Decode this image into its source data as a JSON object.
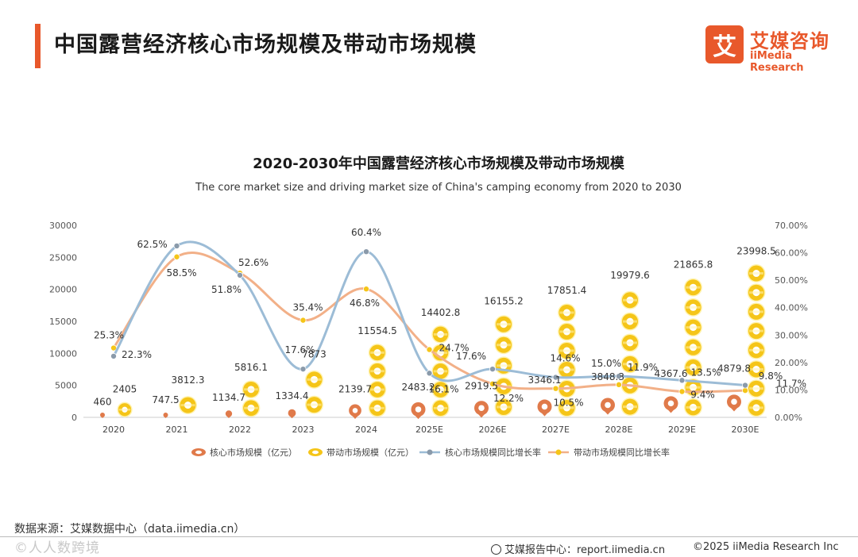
{
  "header": {
    "title": "中国露营经济核心市场规模及带动市场规模"
  },
  "brand": {
    "mark": "艾",
    "name_cn": "艾媒咨询",
    "name_en": "iiMedia Research",
    "color": "#e8582b"
  },
  "chart_data": {
    "type": "bar",
    "title": "2020-2030年中国露营经济核心市场规模及带动市场规模",
    "subtitle": "The core market size and driving market size of China's camping economy from 2020 to 2030",
    "categories": [
      "2020",
      "2021",
      "2022",
      "2023",
      "2024",
      "2025E",
      "2026E",
      "2027E",
      "2028E",
      "2029E",
      "2030E"
    ],
    "y_left": {
      "range": [
        0,
        30000
      ],
      "ticks": [
        "0",
        "5000",
        "10000",
        "15000",
        "20000",
        "25000",
        "30000"
      ]
    },
    "y_right": {
      "range": [
        0,
        70
      ],
      "ticks": [
        "0.00%",
        "10.00%",
        "20.00%",
        "30.00%",
        "40.00%",
        "50.00%",
        "60.00%",
        "70.00%"
      ]
    },
    "series": [
      {
        "name": "核心市场规模（亿元）",
        "kind": "bar",
        "color": "#e07a4a",
        "values": [
          460,
          747.5,
          1134.7,
          1334.4,
          2139.7,
          2483.2,
          2919.5,
          3346.1,
          3848.3,
          4367.6,
          4879.8
        ],
        "labels": [
          "460",
          "747.5",
          "1134.7",
          "1334.4",
          "2139.7",
          "2483.2",
          "2919.5",
          "3346.1",
          "3848.3",
          "4367.6",
          "4879.8"
        ]
      },
      {
        "name": "带动市场规模（亿元）",
        "kind": "bar",
        "color": "#f5c518",
        "values": [
          2405,
          3812.3,
          5816.1,
          7873,
          11554.5,
          14402.8,
          16155.2,
          17851.4,
          19979.6,
          21865.8,
          23998.5
        ],
        "labels": [
          "2405",
          "3812.3",
          "5816.1",
          "7873",
          "11554.5",
          "14402.8",
          "16155.2",
          "17851.4",
          "19979.6",
          "21865.8",
          "23998.5"
        ]
      },
      {
        "name": "核心市场规模同比增长率",
        "kind": "line",
        "axis": "right",
        "color": "#9cbcd6",
        "marker": "#8a9aaa",
        "values": [
          22.3,
          62.5,
          51.8,
          17.6,
          60.4,
          16.1,
          17.6,
          14.6,
          15.0,
          13.5,
          11.7
        ],
        "labels": [
          "22.3%",
          "62.5%",
          "51.8%",
          "17.6%",
          "60.4%",
          "16.1%",
          "17.6%",
          "14.6%",
          "15.0%",
          "13.5%",
          "11.7%"
        ]
      },
      {
        "name": "带动市场规模同比增长率",
        "kind": "line",
        "axis": "right",
        "color": "#f2b088",
        "marker": "#f5c518",
        "values": [
          25.3,
          58.5,
          52.6,
          35.4,
          46.8,
          24.7,
          12.2,
          10.5,
          11.9,
          9.4,
          9.8
        ],
        "labels": [
          "25.3%",
          "58.5%",
          "52.6%",
          "35.4%",
          "46.8%",
          "24.7%",
          "12.2%",
          "10.5%",
          "11.9%",
          "9.4%",
          "9.8%"
        ]
      }
    ],
    "legend_position": "bottom",
    "grid": false
  },
  "footer": {
    "source": "数据来源：艾媒数据中心（data.iimedia.cn）",
    "watermark": "©人人数跨境",
    "report": "艾媒报告中心：report.iimedia.cn",
    "copyright": "©2025  iiMedia Research  Inc"
  }
}
